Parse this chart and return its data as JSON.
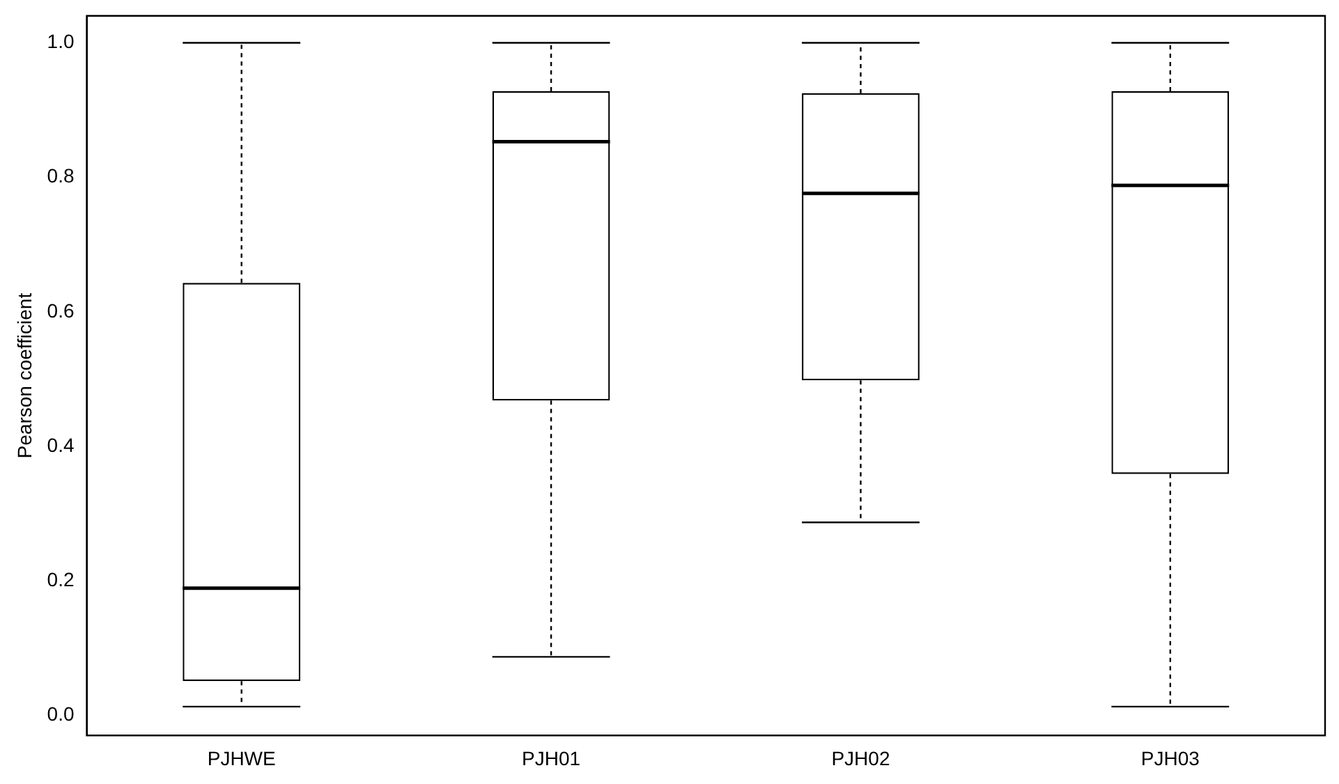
{
  "chart_data": {
    "type": "box",
    "ylabel": "Pearson coefficient",
    "categories": [
      "PJHWE",
      "PJH01",
      "PJH02",
      "PJH03"
    ],
    "boxes": [
      {
        "low": 0.013,
        "q1": 0.051,
        "median": 0.189,
        "q3": 0.643,
        "high": 1.0
      },
      {
        "low": 0.087,
        "q1": 0.468,
        "median": 0.853,
        "q3": 0.928,
        "high": 1.0
      },
      {
        "low": 0.287,
        "q1": 0.498,
        "median": 0.776,
        "q3": 0.925,
        "high": 1.0
      },
      {
        "low": 0.013,
        "q1": 0.359,
        "median": 0.788,
        "q3": 0.928,
        "high": 1.0
      }
    ],
    "ylim": [
      -0.03,
      1.04
    ],
    "yticks": [
      {
        "value": 0,
        "label": "0.0"
      },
      {
        "value": 0.2,
        "label": "0.2"
      },
      {
        "value": 0.4,
        "label": "0.4"
      },
      {
        "value": 0.6,
        "label": "0.6"
      },
      {
        "value": 0.8,
        "label": "0.8"
      },
      {
        "value": 1,
        "label": "1.0"
      }
    ]
  }
}
